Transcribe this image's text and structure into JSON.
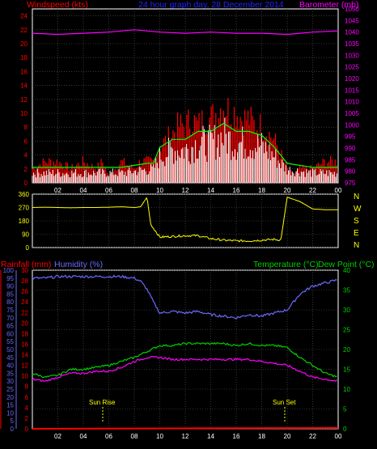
{
  "header": {
    "windspeed_label": "Windspeed (kts)",
    "title": "24 hour graph day, 28 December 2014",
    "barometer_label": "Barometer (mb)"
  },
  "middle_header": {
    "rainfall_label": "Rainfall (mm)",
    "humidity_label": "Humidity (%)",
    "temperature_label": "Temperature (°C)",
    "dewpoint_label": "Dew Point (°C)"
  },
  "annotations": {
    "sunrise": "Sun Rise",
    "sunset": "Sun Set"
  },
  "colors": {
    "windspeed": "#ff0000",
    "gust": "#00ff00",
    "wind_avg": "#ffffff",
    "barometer": "#ff00ff",
    "direction": "#ffff00",
    "rainfall": "#ff0000",
    "humidity": "#6a6aff",
    "temperature": "#00d000",
    "dewpoint": "#ff00ff",
    "grid": "#5c5c5c",
    "frame": "#ffffff",
    "title": "#2222ff"
  },
  "chart_data": [
    {
      "type": "line",
      "panel": "wind",
      "x_ticks": [
        "02",
        "04",
        "06",
        "08",
        "10",
        "12",
        "14",
        "16",
        "18",
        "20",
        "22",
        "00"
      ],
      "y_left_ticks": [
        0,
        2,
        4,
        6,
        8,
        10,
        12,
        14,
        16,
        18,
        20,
        22,
        24
      ],
      "y_right_ticks": [
        975,
        980,
        985,
        990,
        995,
        1000,
        1005,
        1010,
        1015,
        1020,
        1025,
        1030,
        1035,
        1040,
        1045,
        1050
      ],
      "ylim_left": [
        0,
        25
      ],
      "ylim_right": [
        975,
        1050
      ],
      "series": [
        {
          "name": "Windspeed (kts)",
          "axis": "left",
          "x": [
            0,
            1,
            2,
            3,
            4,
            5,
            5.5,
            6,
            7,
            8,
            8.5,
            9,
            9.5,
            10,
            10.5,
            11,
            11.5,
            12,
            12.5,
            13,
            13.5,
            14,
            14.5,
            15,
            15.5,
            16,
            16.5,
            17,
            17.5,
            18,
            18.5,
            19,
            19.5,
            20,
            20.5,
            21,
            22,
            23,
            24
          ],
          "values": [
            2,
            3,
            3,
            2,
            3,
            2,
            3,
            1,
            3,
            2,
            3,
            3,
            3,
            5,
            6,
            7,
            8,
            8,
            9,
            8,
            9,
            9,
            10,
            11,
            10,
            10,
            9,
            9,
            8,
            8,
            7,
            6,
            4,
            2,
            1,
            2,
            2,
            3,
            3
          ]
        },
        {
          "name": "Gust",
          "axis": "left",
          "x": [
            0,
            4,
            7,
            9,
            9.5,
            10,
            11,
            12,
            13,
            14,
            15,
            16,
            17,
            18,
            19,
            19.5,
            20,
            22,
            24
          ],
          "values": [
            1.5,
            1.5,
            1.5,
            2,
            2,
            4,
            5,
            5,
            6,
            6,
            7,
            6,
            6,
            5.5,
            4,
            3,
            2,
            1.5,
            1.5
          ]
        },
        {
          "name": "Barometer (mb)",
          "axis": "right",
          "x": [
            0,
            2,
            4,
            6,
            8,
            10,
            12,
            14,
            16,
            18,
            20,
            22,
            24
          ],
          "values": [
            1039.5,
            1039,
            1039.5,
            1040,
            1041,
            1040,
            1039.5,
            1040,
            1039.5,
            1039.5,
            1039,
            1040,
            1040.5
          ]
        }
      ]
    },
    {
      "type": "line",
      "panel": "wind-direction",
      "y_left_ticks": [
        0,
        90,
        180,
        270,
        360
      ],
      "y_right_labels": [
        "N",
        "W",
        "S",
        "E",
        "N"
      ],
      "ylim": [
        0,
        360
      ],
      "series": [
        {
          "name": "Wind direction",
          "x": [
            0,
            1,
            2,
            3,
            4,
            5,
            6,
            7,
            8,
            8.5,
            9,
            9.3,
            9.6,
            10,
            11,
            12,
            13,
            14,
            15,
            16,
            17,
            18,
            19,
            19.5,
            20,
            21,
            22,
            23,
            24
          ],
          "values": [
            270,
            272,
            270,
            268,
            270,
            270,
            272,
            275,
            270,
            275,
            340,
            150,
            120,
            70,
            75,
            80,
            80,
            60,
            50,
            45,
            45,
            50,
            55,
            50,
            340,
            310,
            260,
            255,
            255
          ]
        }
      ]
    },
    {
      "type": "line",
      "panel": "temperature",
      "y_left_rain_ticks": [
        0,
        2,
        4,
        6,
        8,
        10,
        12,
        14,
        16,
        18,
        20,
        22,
        24,
        26,
        28,
        30
      ],
      "y_left_humidity_ticks": [
        0,
        5,
        10,
        15,
        20,
        25,
        30,
        35,
        40,
        45,
        50,
        55,
        60,
        65,
        70,
        75,
        80,
        85,
        90,
        95,
        100
      ],
      "y_right_ticks": [
        0,
        5,
        10,
        15,
        20,
        25,
        30,
        35,
        40
      ],
      "ylim_temperature": [
        0,
        40
      ],
      "ylim_humidity": [
        0,
        100
      ],
      "series": [
        {
          "name": "Humidity (%)",
          "axis": "humidity",
          "x": [
            0,
            1,
            2,
            3,
            4,
            5,
            6,
            7,
            8,
            8.5,
            9,
            9.5,
            10,
            11,
            12,
            13,
            14,
            15,
            16,
            17,
            18,
            19,
            20,
            21,
            22,
            23,
            24
          ],
          "values": [
            95,
            95,
            96,
            96,
            96,
            96,
            96,
            96,
            95,
            93,
            88,
            80,
            73,
            74,
            73,
            74,
            72,
            71,
            70,
            72,
            71,
            73,
            75,
            85,
            90,
            92,
            94
          ]
        },
        {
          "name": "Temperature (°C)",
          "axis": "temperature",
          "x": [
            0,
            1,
            2,
            3,
            4,
            5,
            6,
            7,
            8,
            9,
            10,
            11,
            12,
            13,
            14,
            15,
            16,
            17,
            18,
            19,
            20,
            21,
            22,
            23,
            24
          ],
          "values": [
            14,
            13,
            13.5,
            15,
            15,
            15.5,
            16,
            17,
            18,
            19.5,
            21,
            21,
            21.5,
            21.5,
            21.5,
            21.5,
            21,
            21.5,
            21,
            21,
            20.5,
            18,
            16,
            14,
            13
          ]
        },
        {
          "name": "Dew Point (°C)",
          "axis": "temperature",
          "x": [
            0,
            1,
            2,
            3,
            4,
            5,
            6,
            7,
            8,
            9,
            10,
            11,
            12,
            13,
            14,
            15,
            16,
            17,
            18,
            19,
            20,
            21,
            22,
            23,
            24
          ],
          "values": [
            12.5,
            12,
            13,
            14,
            14,
            14.5,
            14.5,
            15.5,
            17,
            18,
            18,
            17.5,
            17.5,
            17.5,
            17.5,
            17.5,
            17.5,
            17.5,
            17,
            16.5,
            16,
            14.5,
            13,
            12.5,
            12
          ]
        },
        {
          "name": "Rainfall (mm)",
          "axis": "rain",
          "x": [
            0,
            24
          ],
          "values": [
            0,
            0
          ]
        }
      ]
    }
  ]
}
